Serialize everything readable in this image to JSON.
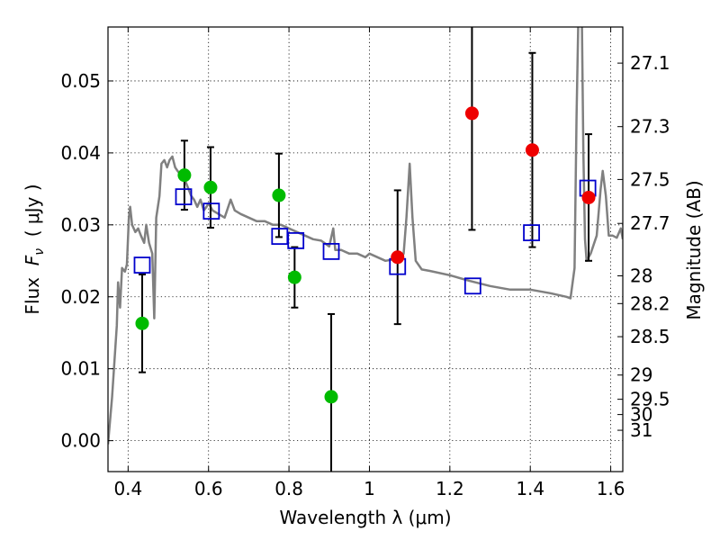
{
  "chart_data": {
    "type": "scatter",
    "title": "",
    "xlabel": "Wavelength  λ (μm)",
    "ylabel": "Flux  F_ν  ( μJy )",
    "ylabel_parts": {
      "prefix": "Flux  ",
      "symbol": "F",
      "subscript": "ν",
      "suffix": "  ( μJy )"
    },
    "y2label": "Magnitude (AB)",
    "xlim": [
      0.35,
      1.63
    ],
    "ylim": [
      -0.0043,
      0.0575
    ],
    "grid": true,
    "x_ticks": [
      0.4,
      0.6,
      0.8,
      1.0,
      1.2,
      1.4,
      1.6
    ],
    "x_tick_labels": [
      "0.4",
      "0.6",
      "0.8",
      "1",
      "1.2",
      "1.4",
      "1.6"
    ],
    "y_ticks": [
      0.0,
      0.01,
      0.02,
      0.03,
      0.04,
      0.05
    ],
    "y_tick_labels": [
      "0.00",
      "0.01",
      "0.02",
      "0.03",
      "0.04",
      "0.05"
    ],
    "magnitude_ticks": [
      27.1,
      27.3,
      27.5,
      27.7,
      28,
      28.2,
      28.5,
      29,
      29.5,
      30,
      31
    ],
    "magnitude_tick_labels": [
      "27.1",
      "27.3",
      "27.5",
      "27.7",
      "28",
      "28.2",
      "28.5",
      "29",
      "29.5",
      "30",
      "31"
    ],
    "colors": {
      "model": "#808080",
      "green": "#00bb00",
      "red": "#ee0000",
      "square": "#0000cc",
      "errorbar": "#000000"
    },
    "series": [
      {
        "name": "model SED",
        "kind": "line",
        "points": [
          [
            0.35,
            -0.0005
          ],
          [
            0.36,
            0.006
          ],
          [
            0.372,
            0.016
          ],
          [
            0.375,
            0.022
          ],
          [
            0.38,
            0.0185
          ],
          [
            0.385,
            0.024
          ],
          [
            0.392,
            0.0235
          ],
          [
            0.397,
            0.0245
          ],
          [
            0.402,
            0.031
          ],
          [
            0.405,
            0.0325
          ],
          [
            0.41,
            0.03
          ],
          [
            0.418,
            0.029
          ],
          [
            0.425,
            0.0295
          ],
          [
            0.432,
            0.0285
          ],
          [
            0.44,
            0.0275
          ],
          [
            0.445,
            0.03
          ],
          [
            0.452,
            0.0275
          ],
          [
            0.46,
            0.026
          ],
          [
            0.465,
            0.017
          ],
          [
            0.47,
            0.031
          ],
          [
            0.478,
            0.034
          ],
          [
            0.483,
            0.0385
          ],
          [
            0.49,
            0.039
          ],
          [
            0.497,
            0.038
          ],
          [
            0.503,
            0.039
          ],
          [
            0.51,
            0.0395
          ],
          [
            0.517,
            0.038
          ],
          [
            0.523,
            0.0375
          ],
          [
            0.53,
            0.037
          ],
          [
            0.536,
            0.0365
          ],
          [
            0.543,
            0.036
          ],
          [
            0.55,
            0.035
          ],
          [
            0.557,
            0.034
          ],
          [
            0.564,
            0.0335
          ],
          [
            0.572,
            0.0325
          ],
          [
            0.58,
            0.0335
          ],
          [
            0.588,
            0.032
          ],
          [
            0.595,
            0.0325
          ],
          [
            0.6,
            0.033
          ],
          [
            0.61,
            0.032
          ],
          [
            0.625,
            0.0315
          ],
          [
            0.64,
            0.031
          ],
          [
            0.655,
            0.0335
          ],
          [
            0.665,
            0.032
          ],
          [
            0.68,
            0.0315
          ],
          [
            0.7,
            0.031
          ],
          [
            0.72,
            0.0305
          ],
          [
            0.74,
            0.0305
          ],
          [
            0.76,
            0.03
          ],
          [
            0.78,
            0.03
          ],
          [
            0.8,
            0.0295
          ],
          [
            0.82,
            0.029
          ],
          [
            0.84,
            0.0285
          ],
          [
            0.86,
            0.028
          ],
          [
            0.88,
            0.0278
          ],
          [
            0.9,
            0.027
          ],
          [
            0.91,
            0.0295
          ],
          [
            0.915,
            0.0265
          ],
          [
            0.93,
            0.0265
          ],
          [
            0.95,
            0.026
          ],
          [
            0.97,
            0.026
          ],
          [
            0.99,
            0.0255
          ],
          [
            1.0,
            0.026
          ],
          [
            1.02,
            0.0255
          ],
          [
            1.04,
            0.025
          ],
          [
            1.06,
            0.0252
          ],
          [
            1.075,
            0.025
          ],
          [
            1.085,
            0.026
          ],
          [
            1.092,
            0.031
          ],
          [
            1.1,
            0.0385
          ],
          [
            1.107,
            0.031
          ],
          [
            1.115,
            0.025
          ],
          [
            1.13,
            0.0238
          ],
          [
            1.15,
            0.0236
          ],
          [
            1.2,
            0.023
          ],
          [
            1.25,
            0.0222
          ],
          [
            1.3,
            0.0215
          ],
          [
            1.35,
            0.021
          ],
          [
            1.4,
            0.021
          ],
          [
            1.45,
            0.0205
          ],
          [
            1.49,
            0.02
          ],
          [
            1.5,
            0.0198
          ],
          [
            1.51,
            0.024
          ],
          [
            1.515,
            0.045
          ],
          [
            1.52,
            0.06
          ],
          [
            1.528,
            0.06
          ],
          [
            1.532,
            0.04
          ],
          [
            1.536,
            0.028
          ],
          [
            1.54,
            0.025
          ],
          [
            1.55,
            0.026
          ],
          [
            1.565,
            0.0285
          ],
          [
            1.575,
            0.035
          ],
          [
            1.58,
            0.0375
          ],
          [
            1.588,
            0.034
          ],
          [
            1.595,
            0.0285
          ],
          [
            1.605,
            0.0285
          ],
          [
            1.615,
            0.0282
          ],
          [
            1.625,
            0.0295
          ],
          [
            1.63,
            0.028
          ]
        ]
      },
      {
        "name": "green points",
        "kind": "points",
        "points": [
          {
            "x": 0.435,
            "y": 0.0163,
            "err": 0.0068
          },
          {
            "x": 0.54,
            "y": 0.0369,
            "err": 0.0048
          },
          {
            "x": 0.605,
            "y": 0.0352,
            "err": 0.0056
          },
          {
            "x": 0.775,
            "y": 0.0341,
            "err": 0.0058
          },
          {
            "x": 0.814,
            "y": 0.0227,
            "err": 0.0042
          },
          {
            "x": 0.905,
            "y": 0.0061,
            "err": 0.0115
          }
        ]
      },
      {
        "name": "red points",
        "kind": "points",
        "points": [
          {
            "x": 1.07,
            "y": 0.0255,
            "err": 0.0093
          },
          {
            "x": 1.255,
            "y": 0.0455,
            "err": 0.0162
          },
          {
            "x": 1.405,
            "y": 0.0404,
            "err": 0.0135
          },
          {
            "x": 1.545,
            "y": 0.0338,
            "err": 0.0088
          }
        ]
      },
      {
        "name": "model band fluxes",
        "kind": "squares",
        "points": [
          [
            0.435,
            0.0244
          ],
          [
            0.538,
            0.0339
          ],
          [
            0.607,
            0.0319
          ],
          [
            0.777,
            0.0284
          ],
          [
            0.817,
            0.0278
          ],
          [
            0.905,
            0.0263
          ],
          [
            1.07,
            0.0242
          ],
          [
            1.257,
            0.0215
          ],
          [
            1.403,
            0.0289
          ],
          [
            1.543,
            0.0351
          ]
        ]
      }
    ]
  }
}
